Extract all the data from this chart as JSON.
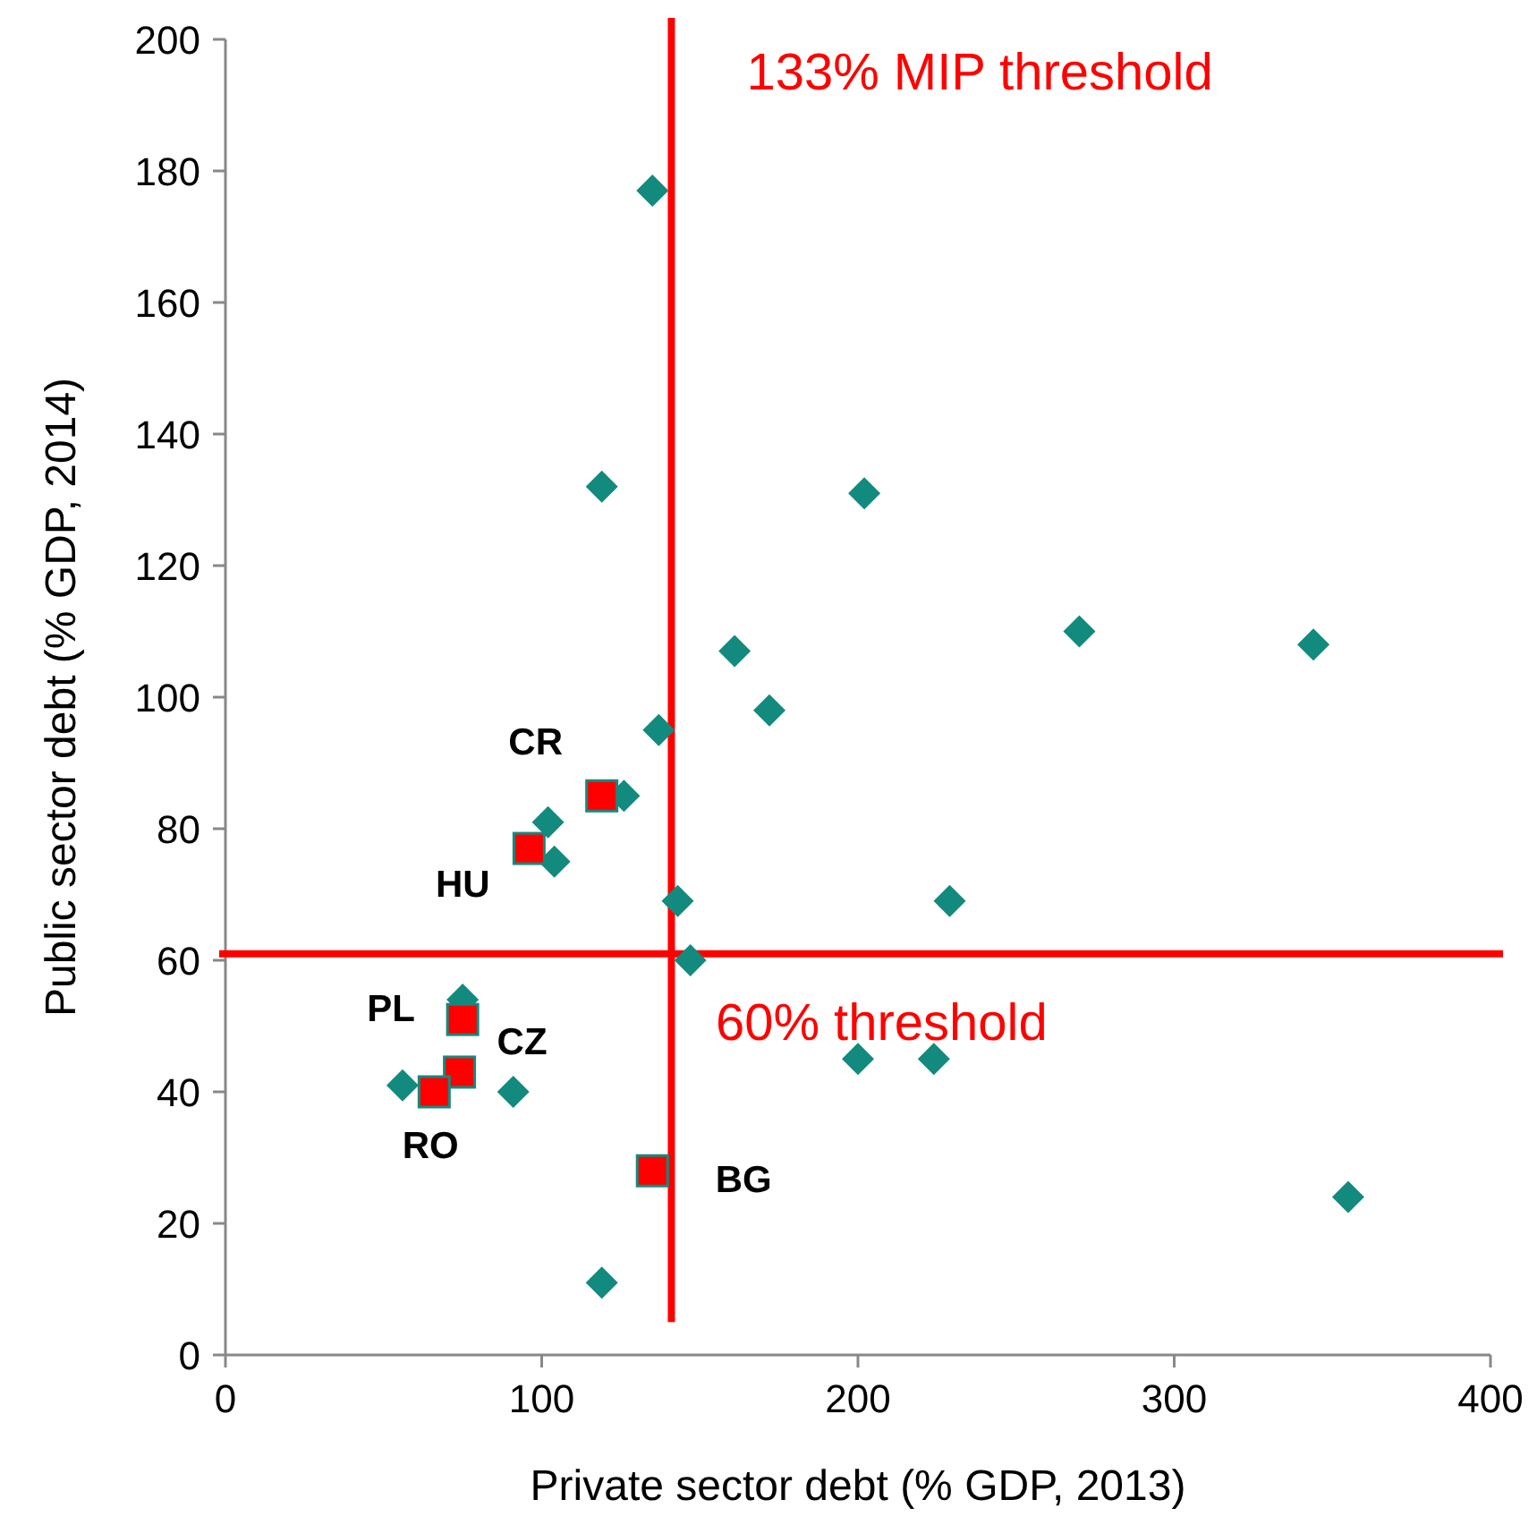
{
  "chart_data": {
    "type": "scatter",
    "xlabel": "Private sector debt (% GDP, 2013)",
    "ylabel": "Public sector debt (% GDP, 2014)",
    "xlim": [
      0,
      400
    ],
    "xticks": [
      0,
      100,
      200,
      300,
      400
    ],
    "ylim": [
      0,
      200
    ],
    "yticks": [
      0,
      20,
      40,
      60,
      80,
      100,
      120,
      140,
      160,
      180,
      200
    ],
    "grid": false,
    "series": [
      {
        "color": "#138a7e",
        "marker": "diamond",
        "x": [
          135,
          119,
          202,
          270,
          344,
          161,
          172,
          137,
          126,
          102,
          104,
          143,
          229,
          147,
          75,
          56,
          91,
          200,
          224,
          355,
          119
        ],
        "values": [
          177,
          132,
          131,
          110,
          108,
          107,
          98,
          95,
          85,
          81,
          75,
          69,
          69,
          60,
          54,
          41,
          40,
          45,
          45,
          24,
          11
        ]
      },
      {
        "color": "#ff0000",
        "marker": "square",
        "x": [
          119,
          96,
          75,
          74,
          66,
          135
        ],
        "values": [
          85,
          77,
          51,
          43,
          40,
          28
        ]
      }
    ],
    "ref_lines": [
      {
        "axis": "x",
        "value": 141,
        "label": "133% MIP threshold",
        "color": "#ff0000"
      },
      {
        "axis": "y",
        "value": 61,
        "label": "60% threshold",
        "color": "#ff0000"
      }
    ],
    "annotations": [
      {
        "text": "CR",
        "x": 119,
        "y": 85
      },
      {
        "text": "HU",
        "x": 96,
        "y": 77
      },
      {
        "text": "PL",
        "x": 75,
        "y": 51
      },
      {
        "text": "CZ",
        "x": 74,
        "y": 43
      },
      {
        "text": "RO",
        "x": 66,
        "y": 40
      },
      {
        "text": "BG",
        "x": 135,
        "y": 28
      }
    ]
  }
}
